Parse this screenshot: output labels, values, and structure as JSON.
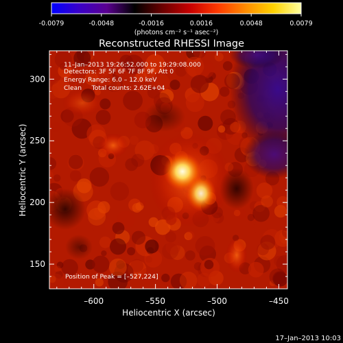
{
  "colorbar": {
    "ticks": [
      "-0.0079",
      "-0.0048",
      "-0.0016",
      "0.0016",
      "0.0048",
      "0.0079"
    ],
    "unit": "(photons cm⁻² s⁻¹ asec⁻²)",
    "colormap": [
      "#0000ff",
      "#3a00c8",
      "#5a0090",
      "#000000",
      "#6a0000",
      "#c80000",
      "#ff3a00",
      "#ff8c00",
      "#ffd200",
      "#ffffa0"
    ]
  },
  "title": "Reconstructed RHESSI Image",
  "info": {
    "line1": "11–Jan–2013 19:26:52.000 to 19:29:08.000",
    "line2": "Detectors: 3F 5F 6F 7F 8F 9F, Att 0",
    "line3": "Energy Range: 6.0 – 12.0 keV",
    "line4": "Clean     Total counts: 2.62E+04"
  },
  "peak_label": "Position of Peak = [–527,224]",
  "axes": {
    "xlabel": "Heliocentric X (arcsec)",
    "ylabel": "Heliocentric Y (arcsec)",
    "xlim": [
      -636,
      -443
    ],
    "ylim": [
      130,
      323
    ],
    "xticks": [
      {
        "v": -600,
        "t": "–600"
      },
      {
        "v": -550,
        "t": "–550"
      },
      {
        "v": -500,
        "t": "–500"
      },
      {
        "v": -450,
        "t": "–450"
      }
    ],
    "yticks": [
      {
        "v": 150,
        "t": "150"
      },
      {
        "v": 200,
        "t": "200"
      },
      {
        "v": 250,
        "t": "250"
      },
      {
        "v": 300,
        "t": "300"
      }
    ]
  },
  "footer": "17–Jan–2013 10:03"
}
